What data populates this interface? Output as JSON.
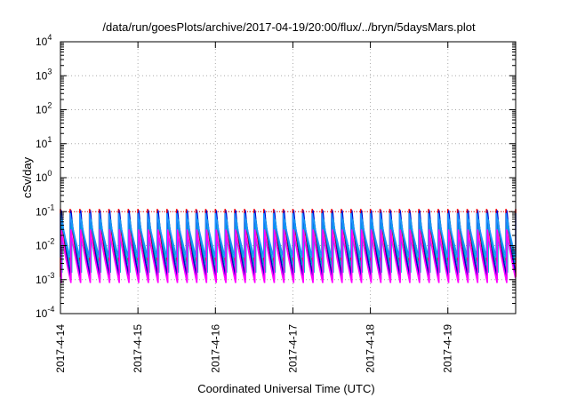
{
  "chart_data": {
    "type": "line",
    "title": "/data/run/goesPlots/archive/2017-04-19/20:00/flux/../bryn/5daysMars.plot",
    "xlabel": "Coordinated Universal Time (UTC)",
    "ylabel": "cSv/day",
    "y_scale": "log",
    "ylim": [
      0.0001,
      10000
    ],
    "y_ticks": [
      {
        "base": "10",
        "exp": "-4"
      },
      {
        "base": "10",
        "exp": "-3"
      },
      {
        "base": "10",
        "exp": "-2"
      },
      {
        "base": "10",
        "exp": "-1"
      },
      {
        "base": "10",
        "exp": "0"
      },
      {
        "base": "10",
        "exp": "1"
      },
      {
        "base": "10",
        "exp": "2"
      },
      {
        "base": "10",
        "exp": "3"
      },
      {
        "base": "10",
        "exp": "4"
      }
    ],
    "xlim": [
      "2017-04-14T00:00",
      "2017-04-19T21:00"
    ],
    "x_ticks": [
      "2017-4-14",
      "2017-4-15",
      "2017-4-16",
      "2017-4-17",
      "2017-4-18",
      "2017-4-19"
    ],
    "grid": true,
    "reference_line": {
      "value": 0.1,
      "color": "#ff0000",
      "style": "dotted"
    },
    "sawtooth_period_hours": 3,
    "series": [
      {
        "color": "#ff0000",
        "peak": 0.12,
        "trough": 0.0012
      },
      {
        "color": "#0000cc",
        "peak": 0.11,
        "trough": 0.001
      },
      {
        "color": "#00aacc",
        "peak": 0.06,
        "trough": 0.0016
      },
      {
        "color": "#1e90ff",
        "peak": 0.09,
        "trough": 0.0045
      },
      {
        "color": "#ff00ff",
        "peak": 0.03,
        "trough": 0.0008
      }
    ]
  }
}
